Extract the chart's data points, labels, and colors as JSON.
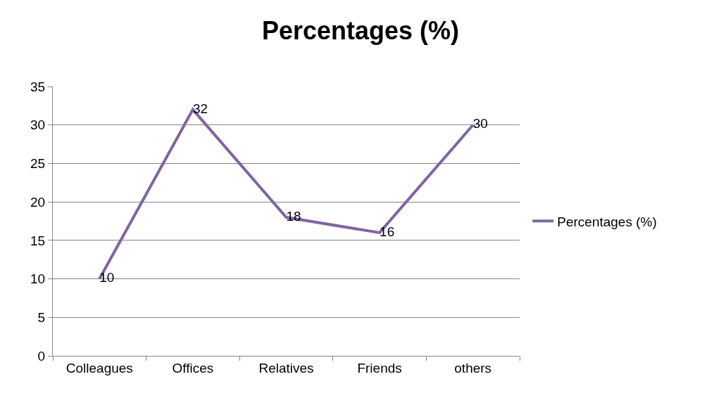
{
  "chart_data": {
    "type": "line",
    "title": "Percentages (%)",
    "categories": [
      "Colleagues",
      "Offices",
      "Relatives",
      "Friends",
      "others"
    ],
    "series": [
      {
        "name": "Percentages (%)",
        "color": "#8064a2",
        "values": [
          10,
          32,
          18,
          16,
          30
        ]
      }
    ],
    "ylim": [
      0,
      35
    ],
    "yticks": [
      0,
      5,
      10,
      15,
      20,
      25,
      30,
      35
    ],
    "grid": "y",
    "legend": "right",
    "data_labels": true,
    "marker": "none",
    "line_style": "solid"
  }
}
